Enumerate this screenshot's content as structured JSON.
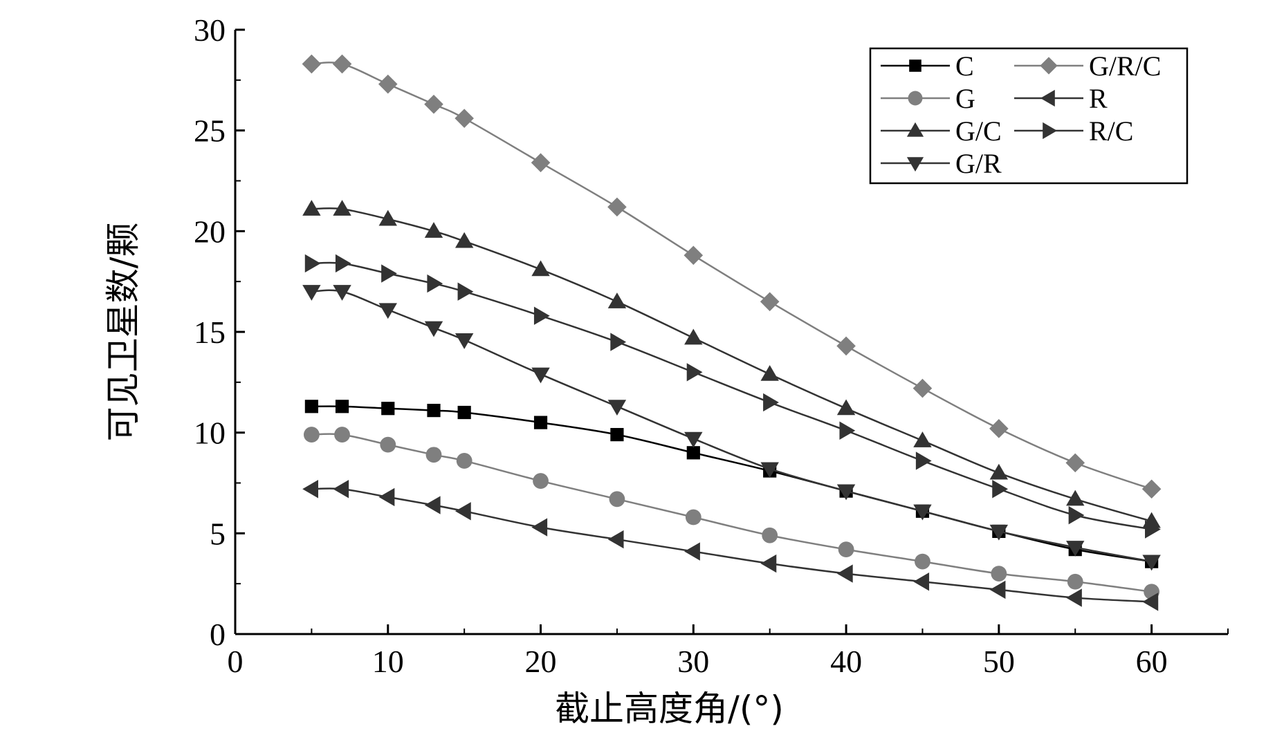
{
  "chart_data": {
    "type": "line",
    "title": "",
    "xlabel": "截止高度角/(°)",
    "ylabel": "可见卫星数/颗",
    "xlim": [
      0,
      65
    ],
    "ylim": [
      0,
      30
    ],
    "xticks": [
      0,
      10,
      20,
      30,
      40,
      50,
      60
    ],
    "yticks": [
      0,
      5,
      10,
      15,
      20,
      25,
      30
    ],
    "grid": false,
    "legend_position": "top-right",
    "x": [
      5,
      7,
      10,
      13,
      15,
      20,
      25,
      30,
      35,
      40,
      45,
      50,
      55,
      60
    ],
    "series": [
      {
        "name": "C",
        "marker": "square",
        "color": "#000000",
        "values": [
          11.3,
          11.3,
          11.2,
          11.1,
          11.0,
          10.5,
          9.9,
          9.0,
          8.1,
          7.1,
          6.1,
          5.1,
          4.2,
          3.6
        ]
      },
      {
        "name": "G/R/C",
        "marker": "diamond",
        "color": "#7f7f7f",
        "values": [
          28.3,
          28.3,
          27.3,
          26.3,
          25.6,
          23.4,
          21.2,
          18.8,
          16.5,
          14.3,
          12.2,
          10.2,
          8.5,
          7.2
        ]
      },
      {
        "name": "G",
        "marker": "circle",
        "color": "#7f7f7f",
        "values": [
          9.9,
          9.9,
          9.4,
          8.9,
          8.6,
          7.6,
          6.7,
          5.8,
          4.9,
          4.2,
          3.6,
          3.0,
          2.6,
          2.1
        ]
      },
      {
        "name": "R",
        "marker": "triangle-left",
        "color": "#333333",
        "values": [
          7.2,
          7.2,
          6.8,
          6.4,
          6.1,
          5.3,
          4.7,
          4.1,
          3.5,
          3.0,
          2.6,
          2.2,
          1.8,
          1.6
        ]
      },
      {
        "name": "G/C",
        "marker": "triangle-up",
        "color": "#333333",
        "values": [
          21.1,
          21.1,
          20.6,
          20.0,
          19.5,
          18.1,
          16.5,
          14.7,
          12.9,
          11.2,
          9.6,
          8.0,
          6.7,
          5.6
        ]
      },
      {
        "name": "R/C",
        "marker": "triangle-right",
        "color": "#333333",
        "values": [
          18.4,
          18.4,
          17.9,
          17.4,
          17.0,
          15.8,
          14.5,
          13.0,
          11.5,
          10.1,
          8.6,
          7.2,
          5.9,
          5.2
        ]
      },
      {
        "name": "G/R",
        "marker": "triangle-down",
        "color": "#333333",
        "values": [
          17.0,
          17.0,
          16.1,
          15.2,
          14.6,
          12.9,
          11.3,
          9.7,
          8.2,
          7.1,
          6.1,
          5.1,
          4.3,
          3.6
        ]
      }
    ]
  }
}
